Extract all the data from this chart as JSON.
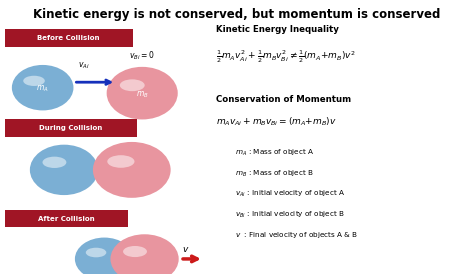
{
  "title": "Kinetic energy is not conserved, but momentum is conserved",
  "title_fontsize": 8.5,
  "bg_color": "#ffffff",
  "labels": {
    "before": "Before Collision",
    "during": "During Collision",
    "after": "After Collision"
  },
  "label_bg": "#a01525",
  "label_fg": "#ffffff",
  "ball_A_color": "#7bafd4",
  "ball_B_color": "#e8959f",
  "arrow_color_blue": "#1530bb",
  "arrow_color_red": "#cc1a1a",
  "eq_title1": "Kinetic Energy Inequality",
  "eq_title2": "Conservation of Momentum",
  "legend_lines": [
    "$m_A$ : Mass of object A",
    "$m_B$ : Mass of object B",
    "$v_{Ai}$ : Initial velocity of object A",
    "$v_{Bi}$ : Initial velocity of object B",
    "$v$  : Final velocity of objects A & B"
  ]
}
